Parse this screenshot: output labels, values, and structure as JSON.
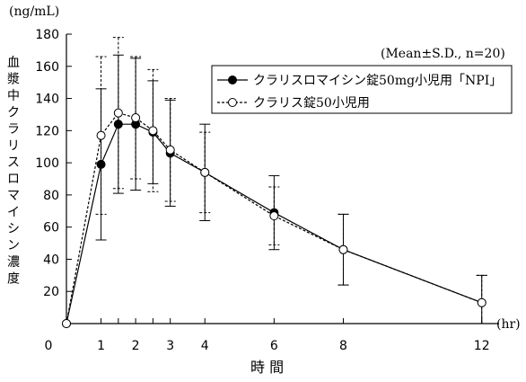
{
  "chart_data": {
    "type": "line",
    "unit_label": "(ng/mL)",
    "ylabel": "血漿中クラリスロマイシン濃度",
    "xlabel": "時 間",
    "x_unit": "(hr)",
    "annotation": "(Mean±S.D., n=20)",
    "xlim": [
      0,
      12.5
    ],
    "ylim": [
      0,
      180
    ],
    "x_ticks": [
      {
        "v": 0,
        "label": "0"
      },
      {
        "v": 1,
        "label": "1"
      },
      {
        "v": 1.5,
        "label": ""
      },
      {
        "v": 2,
        "label": "2"
      },
      {
        "v": 2.5,
        "label": ""
      },
      {
        "v": 3,
        "label": "3"
      },
      {
        "v": 4,
        "label": "4"
      },
      {
        "v": 6,
        "label": "6"
      },
      {
        "v": 8,
        "label": "8"
      },
      {
        "v": 12,
        "label": "12"
      }
    ],
    "y_ticks": [
      20,
      40,
      60,
      80,
      100,
      120,
      140,
      160,
      180
    ],
    "legend_position": "top-right",
    "x": [
      0,
      1,
      1.5,
      2,
      2.5,
      3,
      4,
      6,
      8,
      12
    ],
    "series": [
      {
        "name": "クラリスロマイシン錠50mg小児用「NPI」",
        "marker": "filled-circle",
        "line": "solid",
        "color": "#000000",
        "values": [
          0,
          99,
          124,
          124,
          119,
          106,
          94,
          69,
          46,
          13
        ],
        "sd": [
          0,
          47,
          43,
          41,
          32,
          33,
          30,
          23,
          22,
          17
        ]
      },
      {
        "name": "クラリス錠50小児用",
        "marker": "open-circle",
        "line": "dotted",
        "color": "#000000",
        "values": [
          0,
          117,
          131,
          128,
          120,
          108,
          94,
          67,
          46,
          13
        ],
        "sd": [
          0,
          49,
          47,
          38,
          38,
          32,
          25,
          18,
          22,
          17
        ]
      }
    ]
  }
}
